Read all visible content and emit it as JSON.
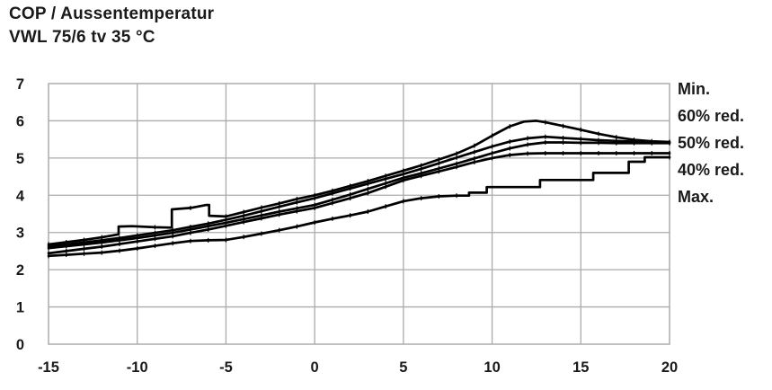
{
  "chart_data": {
    "type": "line",
    "title": "COP / Aussentemperatur",
    "subtitle": "VWL 75/6 tv 35 °C",
    "xlim": [
      -15,
      20
    ],
    "ylim": [
      0,
      7
    ],
    "x_ticks": [
      -15,
      -10,
      -5,
      0,
      5,
      10,
      15,
      20
    ],
    "y_ticks": [
      0,
      1,
      2,
      3,
      4,
      5,
      6,
      7
    ],
    "grid": true,
    "legend_position": "right",
    "line_color": "#000000",
    "grid_color": "#ababab",
    "legend": [
      "Min.",
      "60% red.",
      "50% red.",
      "40% red.",
      "Max."
    ],
    "series": [
      {
        "name": "Min.",
        "points": [
          [
            -15,
            2.68
          ],
          [
            -14,
            2.74
          ],
          [
            -13,
            2.8
          ],
          [
            -12,
            2.87
          ],
          [
            -11.05,
            2.95
          ],
          [
            -11.05,
            3.16
          ],
          [
            -10.3,
            3.17
          ],
          [
            -9,
            3.14
          ],
          [
            -8.05,
            3.13
          ],
          [
            -8.05,
            3.62
          ],
          [
            -7,
            3.66
          ],
          [
            -6.1,
            3.74
          ],
          [
            -5.95,
            3.74
          ],
          [
            -5.95,
            3.45
          ],
          [
            -5,
            3.43
          ],
          [
            -4,
            3.55
          ],
          [
            -3,
            3.67
          ],
          [
            -2,
            3.78
          ],
          [
            -1,
            3.9
          ],
          [
            0,
            4.0
          ],
          [
            1,
            4.12
          ],
          [
            2,
            4.25
          ],
          [
            3,
            4.38
          ],
          [
            4,
            4.52
          ],
          [
            5,
            4.66
          ],
          [
            6,
            4.8
          ],
          [
            7,
            4.96
          ],
          [
            8,
            5.12
          ],
          [
            9,
            5.33
          ],
          [
            10,
            5.6
          ],
          [
            11,
            5.85
          ],
          [
            11.8,
            5.98
          ],
          [
            12.5,
            6.0
          ],
          [
            13,
            5.96
          ],
          [
            14,
            5.86
          ],
          [
            15,
            5.76
          ],
          [
            16,
            5.65
          ],
          [
            17,
            5.56
          ],
          [
            18,
            5.49
          ],
          [
            19,
            5.45
          ],
          [
            20,
            5.43
          ]
        ]
      },
      {
        "name": "60% red.",
        "points": [
          [
            -15,
            2.63
          ],
          [
            -14,
            2.68
          ],
          [
            -13,
            2.73
          ],
          [
            -12,
            2.79
          ],
          [
            -11,
            2.85
          ],
          [
            -10,
            2.92
          ],
          [
            -9,
            2.99
          ],
          [
            -8,
            3.06
          ],
          [
            -7,
            3.15
          ],
          [
            -6,
            3.24
          ],
          [
            -5,
            3.34
          ],
          [
            -4,
            3.45
          ],
          [
            -3,
            3.57
          ],
          [
            -2,
            3.69
          ],
          [
            -1,
            3.81
          ],
          [
            0,
            3.92
          ],
          [
            1,
            4.05
          ],
          [
            2,
            4.18
          ],
          [
            3,
            4.31
          ],
          [
            4,
            4.44
          ],
          [
            5,
            4.57
          ],
          [
            6,
            4.71
          ],
          [
            7,
            4.86
          ],
          [
            8,
            5.01
          ],
          [
            9,
            5.16
          ],
          [
            10,
            5.31
          ],
          [
            11,
            5.44
          ],
          [
            12,
            5.53
          ],
          [
            13,
            5.57
          ],
          [
            14,
            5.54
          ],
          [
            15,
            5.51
          ],
          [
            16,
            5.48
          ],
          [
            17,
            5.46
          ],
          [
            18,
            5.44
          ],
          [
            19,
            5.43
          ],
          [
            20,
            5.42
          ]
        ]
      },
      {
        "name": "50% red.",
        "points": [
          [
            -15,
            2.58
          ],
          [
            -14,
            2.63
          ],
          [
            -13,
            2.68
          ],
          [
            -12,
            2.73
          ],
          [
            -11,
            2.79
          ],
          [
            -10,
            2.85
          ],
          [
            -9,
            2.92
          ],
          [
            -8,
            2.99
          ],
          [
            -7,
            3.08
          ],
          [
            -6,
            3.17
          ],
          [
            -5,
            3.26
          ],
          [
            -4,
            3.36
          ],
          [
            -3,
            3.46
          ],
          [
            -2,
            3.56
          ],
          [
            -1,
            3.65
          ],
          [
            0,
            3.74
          ],
          [
            1,
            3.88
          ],
          [
            2,
            4.02
          ],
          [
            3,
            4.17
          ],
          [
            4,
            4.32
          ],
          [
            5,
            4.47
          ],
          [
            6,
            4.59
          ],
          [
            7,
            4.72
          ],
          [
            8,
            4.85
          ],
          [
            9,
            4.99
          ],
          [
            10,
            5.13
          ],
          [
            11,
            5.26
          ],
          [
            12,
            5.36
          ],
          [
            13,
            5.42
          ],
          [
            14,
            5.42
          ],
          [
            15,
            5.41
          ],
          [
            16,
            5.41
          ],
          [
            17,
            5.4
          ],
          [
            18,
            5.4
          ],
          [
            19,
            5.4
          ],
          [
            20,
            5.4
          ]
        ]
      },
      {
        "name": "40% red.",
        "points": [
          [
            -15,
            2.44
          ],
          [
            -14,
            2.5
          ],
          [
            -13,
            2.56
          ],
          [
            -12,
            2.62
          ],
          [
            -11,
            2.69
          ],
          [
            -10,
            2.76
          ],
          [
            -9,
            2.83
          ],
          [
            -8,
            2.9
          ],
          [
            -7,
            2.99
          ],
          [
            -6,
            3.08
          ],
          [
            -5,
            3.18
          ],
          [
            -4,
            3.28
          ],
          [
            -3,
            3.38
          ],
          [
            -2,
            3.48
          ],
          [
            -1,
            3.57
          ],
          [
            0,
            3.66
          ],
          [
            1,
            3.79
          ],
          [
            2,
            3.92
          ],
          [
            3,
            4.06
          ],
          [
            4,
            4.23
          ],
          [
            5,
            4.4
          ],
          [
            6,
            4.52
          ],
          [
            7,
            4.64
          ],
          [
            8,
            4.76
          ],
          [
            9,
            4.89
          ],
          [
            10,
            5.0
          ],
          [
            11,
            5.08
          ],
          [
            12,
            5.12
          ],
          [
            13,
            5.13
          ],
          [
            14,
            5.13
          ],
          [
            15,
            5.13
          ],
          [
            16,
            5.13
          ],
          [
            17,
            5.13
          ],
          [
            18,
            5.13
          ],
          [
            19,
            5.13
          ],
          [
            20,
            5.13
          ]
        ]
      },
      {
        "name": "Max.",
        "points": [
          [
            -15,
            2.37
          ],
          [
            -14,
            2.4
          ],
          [
            -13,
            2.43
          ],
          [
            -12,
            2.46
          ],
          [
            -11,
            2.51
          ],
          [
            -10,
            2.57
          ],
          [
            -9,
            2.64
          ],
          [
            -8,
            2.71
          ],
          [
            -7,
            2.77
          ],
          [
            -6,
            2.79
          ],
          [
            -5,
            2.8
          ],
          [
            -4,
            2.88
          ],
          [
            -3,
            2.97
          ],
          [
            -2,
            3.06
          ],
          [
            -1,
            3.16
          ],
          [
            0,
            3.27
          ],
          [
            1,
            3.37
          ],
          [
            2,
            3.46
          ],
          [
            3,
            3.56
          ],
          [
            4,
            3.7
          ],
          [
            5,
            3.84
          ],
          [
            6,
            3.92
          ],
          [
            7,
            3.97
          ],
          [
            8,
            3.99
          ],
          [
            8.7,
            3.99
          ],
          [
            8.7,
            4.07
          ],
          [
            9.7,
            4.07
          ],
          [
            9.7,
            4.22
          ],
          [
            12.7,
            4.22
          ],
          [
            12.7,
            4.41
          ],
          [
            15.7,
            4.41
          ],
          [
            15.7,
            4.6
          ],
          [
            17.7,
            4.6
          ],
          [
            17.7,
            4.9
          ],
          [
            18.6,
            4.9
          ],
          [
            18.6,
            5.02
          ],
          [
            20,
            5.02
          ]
        ]
      }
    ]
  }
}
